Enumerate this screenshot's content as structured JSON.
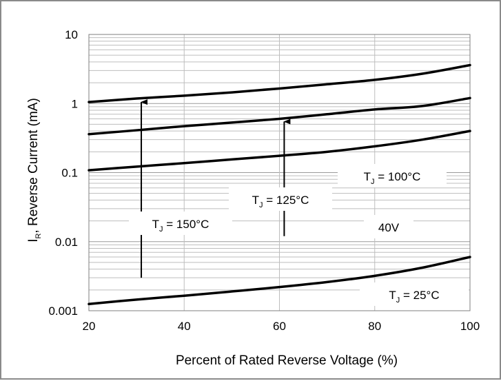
{
  "chart_data": {
    "type": "line",
    "xlabel": "Percent of Rated Reverse Voltage (%)",
    "ylabel_main": "I",
    "ylabel_sub": "R",
    "ylabel_rest": ", Reverse Current (mA)",
    "xlim": [
      20,
      100
    ],
    "ylim": [
      0.001,
      10
    ],
    "yscale": "log",
    "grid": true,
    "x_ticks": [
      20,
      40,
      60,
      80,
      100
    ],
    "x_tick_labels": [
      "20",
      "40",
      "60",
      "80",
      "100"
    ],
    "y_ticks": [
      0.001,
      0.01,
      0.1,
      1,
      10
    ],
    "y_tick_labels": [
      "0.001",
      "0.01",
      "0.1",
      "1",
      "10"
    ],
    "series": [
      {
        "x": [
          20,
          30,
          40,
          50,
          60,
          70,
          80,
          90,
          100
        ],
        "y": [
          1.05,
          1.18,
          1.3,
          1.45,
          1.65,
          1.9,
          2.2,
          2.7,
          3.6
        ]
      },
      {
        "x": [
          20,
          30,
          40,
          50,
          60,
          70,
          80,
          90,
          100
        ],
        "y": [
          0.36,
          0.41,
          0.47,
          0.53,
          0.6,
          0.7,
          0.82,
          0.92,
          1.2
        ]
      },
      {
        "x": [
          20,
          30,
          40,
          50,
          60,
          70,
          80,
          90,
          100
        ],
        "y": [
          0.108,
          0.122,
          0.137,
          0.155,
          0.175,
          0.2,
          0.24,
          0.3,
          0.4
        ]
      },
      {
        "x": [
          20,
          30,
          40,
          50,
          60,
          70,
          80,
          90,
          100
        ],
        "y": [
          0.00125,
          0.00145,
          0.00165,
          0.0019,
          0.0022,
          0.0026,
          0.0032,
          0.0042,
          0.006
        ]
      }
    ],
    "annotations": [
      {
        "main": "T",
        "sub": "J",
        "rest": " = 150°C",
        "x": 31,
        "y": 1.15,
        "from_y": 0.003
      },
      {
        "main": "T",
        "sub": "J",
        "rest": " = 125°C",
        "x": 61,
        "y": 0.6,
        "from_y": 0.012
      },
      {
        "main": "T",
        "sub": "J",
        "rest": " = 100°C",
        "x": 86
      },
      {
        "main": "T",
        "sub": "J",
        "rest": " = 25°C",
        "x": 88
      },
      {
        "main": "40V",
        "x": 84
      }
    ]
  }
}
